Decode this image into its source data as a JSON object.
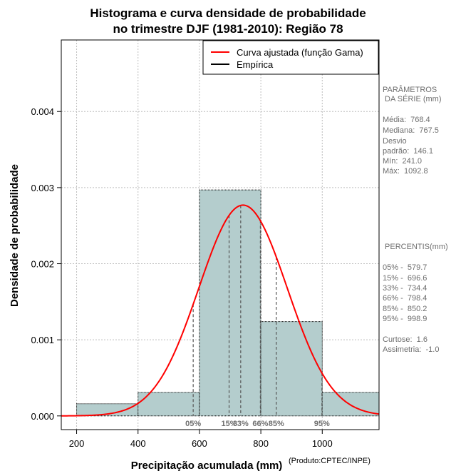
{
  "chart_data": {
    "type": "histogram",
    "title_line1": "Histograma e curva densidade de probabilidade",
    "title_line2": "no trimestre DJF (1981-2010): Região 78",
    "xlabel": "Precipitação acumulada (mm)",
    "ylabel": "Densidade de probabilidade",
    "credit": "(Produto:CPTEC/INPE)",
    "xlim": [
      150,
      1185
    ],
    "ylim": [
      -0.00018,
      0.00494
    ],
    "x_ticks": [
      200,
      400,
      600,
      800,
      1000
    ],
    "y_ticks": [
      0.0,
      0.001,
      0.002,
      0.003,
      0.004
    ],
    "y_tick_labels": [
      "0.000",
      "0.001",
      "0.002",
      "0.003",
      "0.004"
    ],
    "grid": true,
    "legend_position": "top-right",
    "bins": [
      {
        "start": 200,
        "end": 400,
        "density": 0.00016
      },
      {
        "start": 400,
        "end": 600,
        "density": 0.00031
      },
      {
        "start": 600,
        "end": 800,
        "density": 0.00297
      },
      {
        "start": 800,
        "end": 1000,
        "density": 0.00124
      },
      {
        "start": 1000,
        "end": 1200,
        "density": 0.00031
      }
    ],
    "series": [
      {
        "name": "Curva ajustada (função Gama)",
        "color": "#ff0000",
        "curve": {
          "mean": 742,
          "sd": 144,
          "peak": 0.00277,
          "x_start": 150,
          "x_end": 1185
        }
      },
      {
        "name": "Empírica",
        "color": "#000000"
      }
    ],
    "percentile_markers": [
      {
        "label": "05%",
        "x": 579.7
      },
      {
        "label": "15%",
        "x": 696.6
      },
      {
        "label": "33%",
        "x": 734.4
      },
      {
        "label": "66%",
        "x": 798.4
      },
      {
        "label": "85%",
        "x": 850.2
      },
      {
        "label": "95%",
        "x": 998.9
      }
    ],
    "colors": {
      "bar_fill": "#b4cdcd",
      "grid": "#bebebe",
      "marker_line": "#555555",
      "marker_text": "#6e6e6e"
    }
  },
  "stats_panel": {
    "title_line1": "PARÂMETROS",
    "title_line2": " DA SÉRIE (mm)",
    "lines": [
      "Média:  768.4",
      "Mediana:  767.5",
      "Desvio",
      "padrão:  146.1",
      "Mín:  241.0",
      "Máx:  1092.8"
    ]
  },
  "percentile_panel": {
    "title": " PERCENTIS(mm)",
    "lines": [
      "05% -  579.7",
      "15% -  696.6",
      "33% -  734.4",
      "66% -  798.4",
      "85% -  850.2",
      "95% -  998.9"
    ],
    "shape_lines": [
      "Curtose:  1.6",
      "Assimetria:  -1.0"
    ]
  }
}
